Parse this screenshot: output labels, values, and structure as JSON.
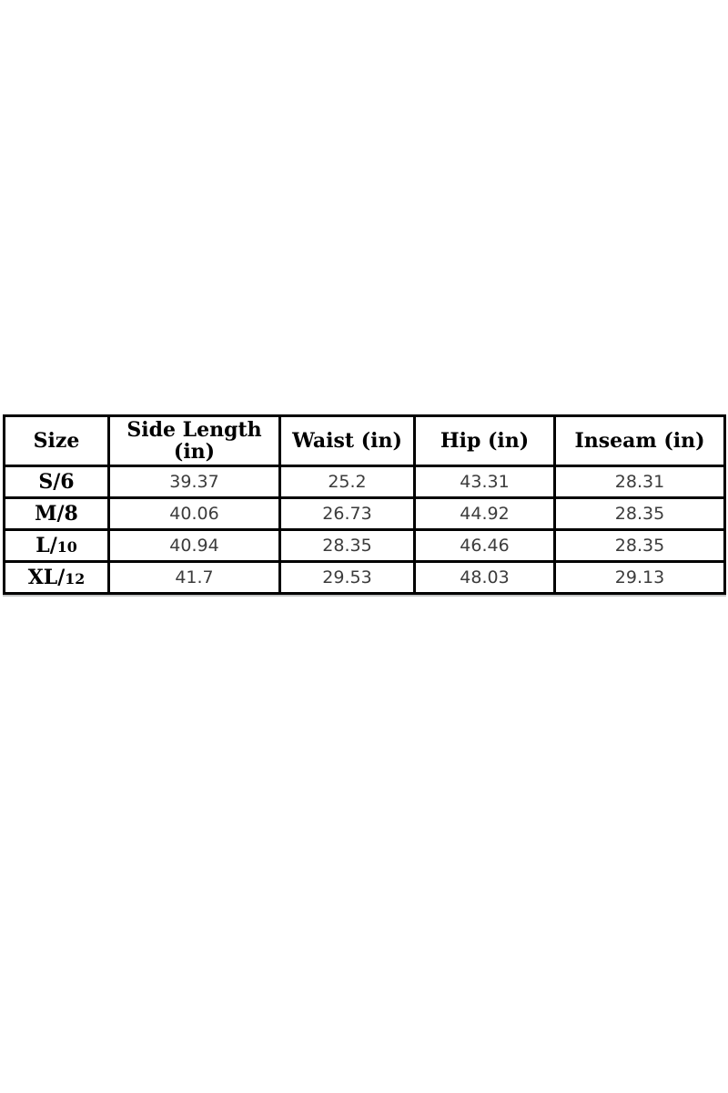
{
  "page": {
    "background_color": "#ffffff"
  },
  "size_chart": {
    "border_color": "#000000",
    "header_text_color": "#000000",
    "value_text_color": "#3c3c3c",
    "columns": [
      "Size",
      "Side Length (in)",
      "Waist (in)",
      "Hip (in)",
      "Inseam (in)"
    ],
    "rows": [
      [
        "S/6",
        "39.37",
        "25.2",
        "43.31",
        "28.31"
      ],
      [
        "M/8",
        "40.06",
        "26.73",
        "44.92",
        "28.35"
      ],
      [
        "L/10",
        "40.94",
        "28.35",
        "46.46",
        "28.35"
      ],
      [
        "XL/12",
        "41.7",
        "29.53",
        "48.03",
        "29.13"
      ]
    ]
  }
}
